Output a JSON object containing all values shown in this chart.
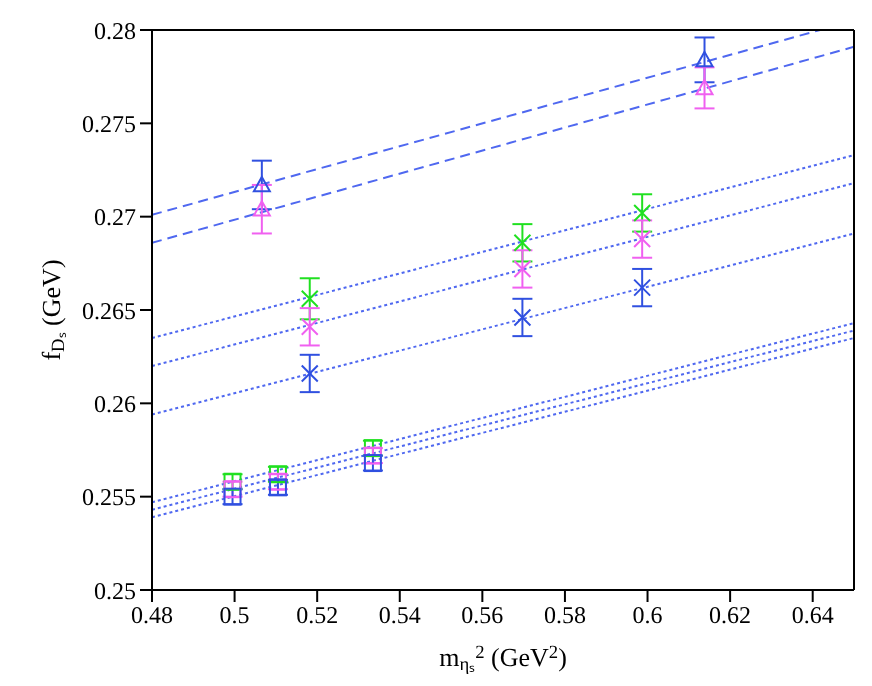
{
  "chart_data": {
    "type": "scatter",
    "xlabel": "m$_{ηₛ}$$^{2}$ (GeV$^{2}$)",
    "ylabel": "f$_{Dₛ}$ (GeV)",
    "xlim": [
      0.48,
      0.65
    ],
    "xticks": [
      0.48,
      0.5,
      0.52,
      0.54,
      0.56,
      0.58,
      0.6,
      0.62,
      0.64
    ],
    "ylim": [
      0.25,
      0.28
    ],
    "yticks": [
      0.25,
      0.255,
      0.26,
      0.265,
      0.27,
      0.275,
      0.28
    ],
    "series": [
      {
        "type": "line",
        "color": "#4f68f0",
        "line_style": "dashed",
        "x": [
          0.48,
          0.6418
        ],
        "values": [
          0.2701,
          0.28
        ]
      },
      {
        "type": "line",
        "color": "#4f68f0",
        "line_style": "dashed",
        "x": [
          0.48,
          0.65
        ],
        "values": [
          0.2686,
          0.2791
        ]
      },
      {
        "type": "line",
        "color": "#4f68f0",
        "line_style": "dotted",
        "x": [
          0.48,
          0.65
        ],
        "values": [
          0.2635,
          0.2733
        ]
      },
      {
        "type": "line",
        "color": "#4f68f0",
        "line_style": "dotted",
        "x": [
          0.48,
          0.65
        ],
        "values": [
          0.262,
          0.2718
        ]
      },
      {
        "type": "line",
        "color": "#4f68f0",
        "line_style": "dotted",
        "x": [
          0.48,
          0.65
        ],
        "values": [
          0.2594,
          0.2691
        ]
      },
      {
        "type": "line",
        "color": "#4f68f0",
        "line_style": "dotted",
        "x": [
          0.48,
          0.65
        ],
        "values": [
          0.2547,
          0.2643
        ]
      },
      {
        "type": "line",
        "color": "#4f68f0",
        "line_style": "dotted",
        "x": [
          0.48,
          0.65
        ],
        "values": [
          0.2543,
          0.2639
        ]
      },
      {
        "type": "line",
        "color": "#4f68f0",
        "line_style": "dotted",
        "x": [
          0.48,
          0.65
        ],
        "values": [
          0.2539,
          0.2635
        ]
      },
      {
        "color": "#3050e0",
        "marker": "triangle",
        "x": [
          0.5066,
          0.6138
        ],
        "values": [
          0.2717,
          0.2784
        ],
        "errors": [
          0.0013,
          0.0012
        ]
      },
      {
        "color": "#f060f0",
        "marker": "triangle",
        "x": [
          0.5066,
          0.6138
        ],
        "values": [
          0.2704,
          0.2769
        ],
        "errors": [
          0.0013,
          0.0011
        ]
      },
      {
        "color": "#20e020",
        "marker": "cross",
        "x": [
          0.5182,
          0.5697,
          0.5987
        ],
        "values": [
          0.2656,
          0.2686,
          0.2702
        ],
        "errors": [
          0.0011,
          0.001,
          0.001
        ]
      },
      {
        "color": "#f060f0",
        "marker": "cross",
        "x": [
          0.5182,
          0.5697,
          0.5987
        ],
        "values": [
          0.2641,
          0.2672,
          0.2688
        ],
        "errors": [
          0.001,
          0.001,
          0.001
        ]
      },
      {
        "color": "#3050e0",
        "marker": "cross",
        "x": [
          0.5182,
          0.5697,
          0.5987
        ],
        "values": [
          0.2616,
          0.2646,
          0.2662
        ],
        "errors": [
          0.001,
          0.001,
          0.001
        ]
      },
      {
        "color": "#20e020",
        "marker": "square",
        "x": [
          0.4995,
          0.5105,
          0.5335
        ],
        "values": [
          0.2558,
          0.2562,
          0.2576
        ],
        "errors": [
          0.0004,
          0.0004,
          0.0004
        ]
      },
      {
        "color": "#f060f0",
        "marker": "square",
        "x": [
          0.4995,
          0.5105,
          0.5335
        ],
        "values": [
          0.2554,
          0.2558,
          0.2572
        ],
        "errors": [
          0.0004,
          0.0004,
          0.0004
        ]
      },
      {
        "color": "#3050e0",
        "marker": "square",
        "x": [
          0.4995,
          0.5105,
          0.5335
        ],
        "values": [
          0.255,
          0.2555,
          0.2568
        ],
        "errors": [
          0.0004,
          0.0004,
          0.0004
        ]
      }
    ]
  }
}
